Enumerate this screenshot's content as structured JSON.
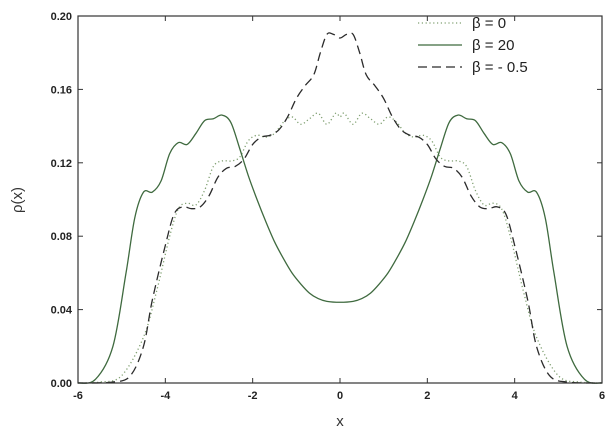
{
  "chart_data": {
    "type": "line",
    "title": "",
    "xlabel": "x",
    "ylabel": "ρ(x)",
    "xlim": [
      -6,
      6
    ],
    "ylim": [
      0,
      0.2
    ],
    "x_ticks": [
      -6,
      -4,
      -2,
      0,
      2,
      4,
      6
    ],
    "x_tick_labels": [
      "-6",
      "-4",
      "-2",
      "0",
      "2",
      "4",
      "6"
    ],
    "y_ticks": [
      0,
      0.04,
      0.08,
      0.12,
      0.16,
      0.2
    ],
    "y_tick_labels": [
      "0.00",
      "0.04",
      "0.08",
      "0.12",
      "0.16",
      "0.20"
    ],
    "grid": false,
    "legend_position": "top-right",
    "series": [
      {
        "name": "β = 0",
        "style": "dotted",
        "color": "#7f9f70",
        "x": [
          -6,
          -5.5,
          -5,
          -4.5,
          -4.2,
          -3.9,
          -3.7,
          -3.5,
          -3.3,
          -3.1,
          -2.9,
          -2.7,
          -2.5,
          -2.3,
          -2.1,
          -1.9,
          -1.7,
          -1.5,
          -1.3,
          -1.1,
          -0.9,
          -0.7,
          -0.5,
          -0.3,
          -0.1,
          0,
          0.1,
          0.3,
          0.5,
          0.7,
          0.9,
          1.1,
          1.3,
          1.5,
          1.7,
          1.9,
          2.1,
          2.3,
          2.5,
          2.7,
          2.9,
          3.1,
          3.3,
          3.5,
          3.7,
          3.9,
          4.2,
          4.5,
          5,
          5.5,
          6
        ],
        "y": [
          0,
          0.0005,
          0.004,
          0.025,
          0.05,
          0.08,
          0.095,
          0.098,
          0.097,
          0.105,
          0.118,
          0.121,
          0.121,
          0.123,
          0.132,
          0.135,
          0.134,
          0.136,
          0.142,
          0.145,
          0.141,
          0.144,
          0.147,
          0.141,
          0.147,
          0.145,
          0.147,
          0.141,
          0.147,
          0.144,
          0.141,
          0.145,
          0.142,
          0.136,
          0.134,
          0.135,
          0.132,
          0.123,
          0.121,
          0.121,
          0.118,
          0.105,
          0.097,
          0.098,
          0.095,
          0.08,
          0.05,
          0.025,
          0.004,
          0.0005,
          0
        ]
      },
      {
        "name": "β = 20",
        "style": "solid",
        "color": "#3f6a3f",
        "x": [
          -6,
          -5.6,
          -5.2,
          -4.9,
          -4.7,
          -4.5,
          -4.3,
          -4.1,
          -3.9,
          -3.7,
          -3.5,
          -3.3,
          -3.1,
          -2.9,
          -2.7,
          -2.5,
          -2.3,
          -2.1,
          -1.9,
          -1.7,
          -1.5,
          -1.3,
          -1.1,
          -0.9,
          -0.7,
          -0.5,
          -0.3,
          0,
          0.3,
          0.5,
          0.7,
          0.9,
          1.1,
          1.3,
          1.5,
          1.7,
          1.9,
          2.1,
          2.3,
          2.5,
          2.7,
          2.9,
          3.1,
          3.3,
          3.5,
          3.7,
          3.9,
          4.1,
          4.3,
          4.5,
          4.7,
          4.9,
          5.2,
          5.6,
          6
        ],
        "y": [
          0,
          0.002,
          0.02,
          0.06,
          0.09,
          0.104,
          0.104,
          0.11,
          0.125,
          0.131,
          0.13,
          0.136,
          0.143,
          0.144,
          0.146,
          0.142,
          0.128,
          0.113,
          0.1,
          0.088,
          0.077,
          0.068,
          0.06,
          0.054,
          0.049,
          0.046,
          0.0445,
          0.044,
          0.0445,
          0.046,
          0.049,
          0.054,
          0.06,
          0.068,
          0.077,
          0.088,
          0.1,
          0.113,
          0.128,
          0.142,
          0.146,
          0.144,
          0.143,
          0.136,
          0.13,
          0.131,
          0.125,
          0.11,
          0.104,
          0.104,
          0.09,
          0.06,
          0.02,
          0.002,
          0
        ]
      },
      {
        "name": "β = - 0.5",
        "style": "dashed",
        "color": "#2b2b2b",
        "x": [
          -6,
          -5.2,
          -4.8,
          -4.5,
          -4.3,
          -4.0,
          -3.8,
          -3.6,
          -3.4,
          -3.2,
          -3.0,
          -2.8,
          -2.6,
          -2.4,
          -2.2,
          -2.0,
          -1.8,
          -1.6,
          -1.4,
          -1.2,
          -1.0,
          -0.8,
          -0.6,
          -0.45,
          -0.3,
          -0.15,
          0,
          0.15,
          0.3,
          0.45,
          0.6,
          0.8,
          1.0,
          1.2,
          1.4,
          1.6,
          1.8,
          2.0,
          2.2,
          2.4,
          2.6,
          2.8,
          3.0,
          3.2,
          3.4,
          3.6,
          3.8,
          4.0,
          4.3,
          4.5,
          4.8,
          5.2,
          6
        ],
        "y": [
          0,
          0.0005,
          0.004,
          0.02,
          0.045,
          0.075,
          0.092,
          0.096,
          0.095,
          0.096,
          0.102,
          0.112,
          0.117,
          0.118,
          0.122,
          0.13,
          0.134,
          0.135,
          0.138,
          0.145,
          0.155,
          0.162,
          0.168,
          0.18,
          0.19,
          0.19,
          0.188,
          0.19,
          0.19,
          0.18,
          0.168,
          0.162,
          0.155,
          0.145,
          0.138,
          0.135,
          0.134,
          0.13,
          0.122,
          0.118,
          0.117,
          0.112,
          0.102,
          0.096,
          0.095,
          0.096,
          0.092,
          0.075,
          0.045,
          0.02,
          0.004,
          0.0005,
          0
        ]
      }
    ]
  }
}
